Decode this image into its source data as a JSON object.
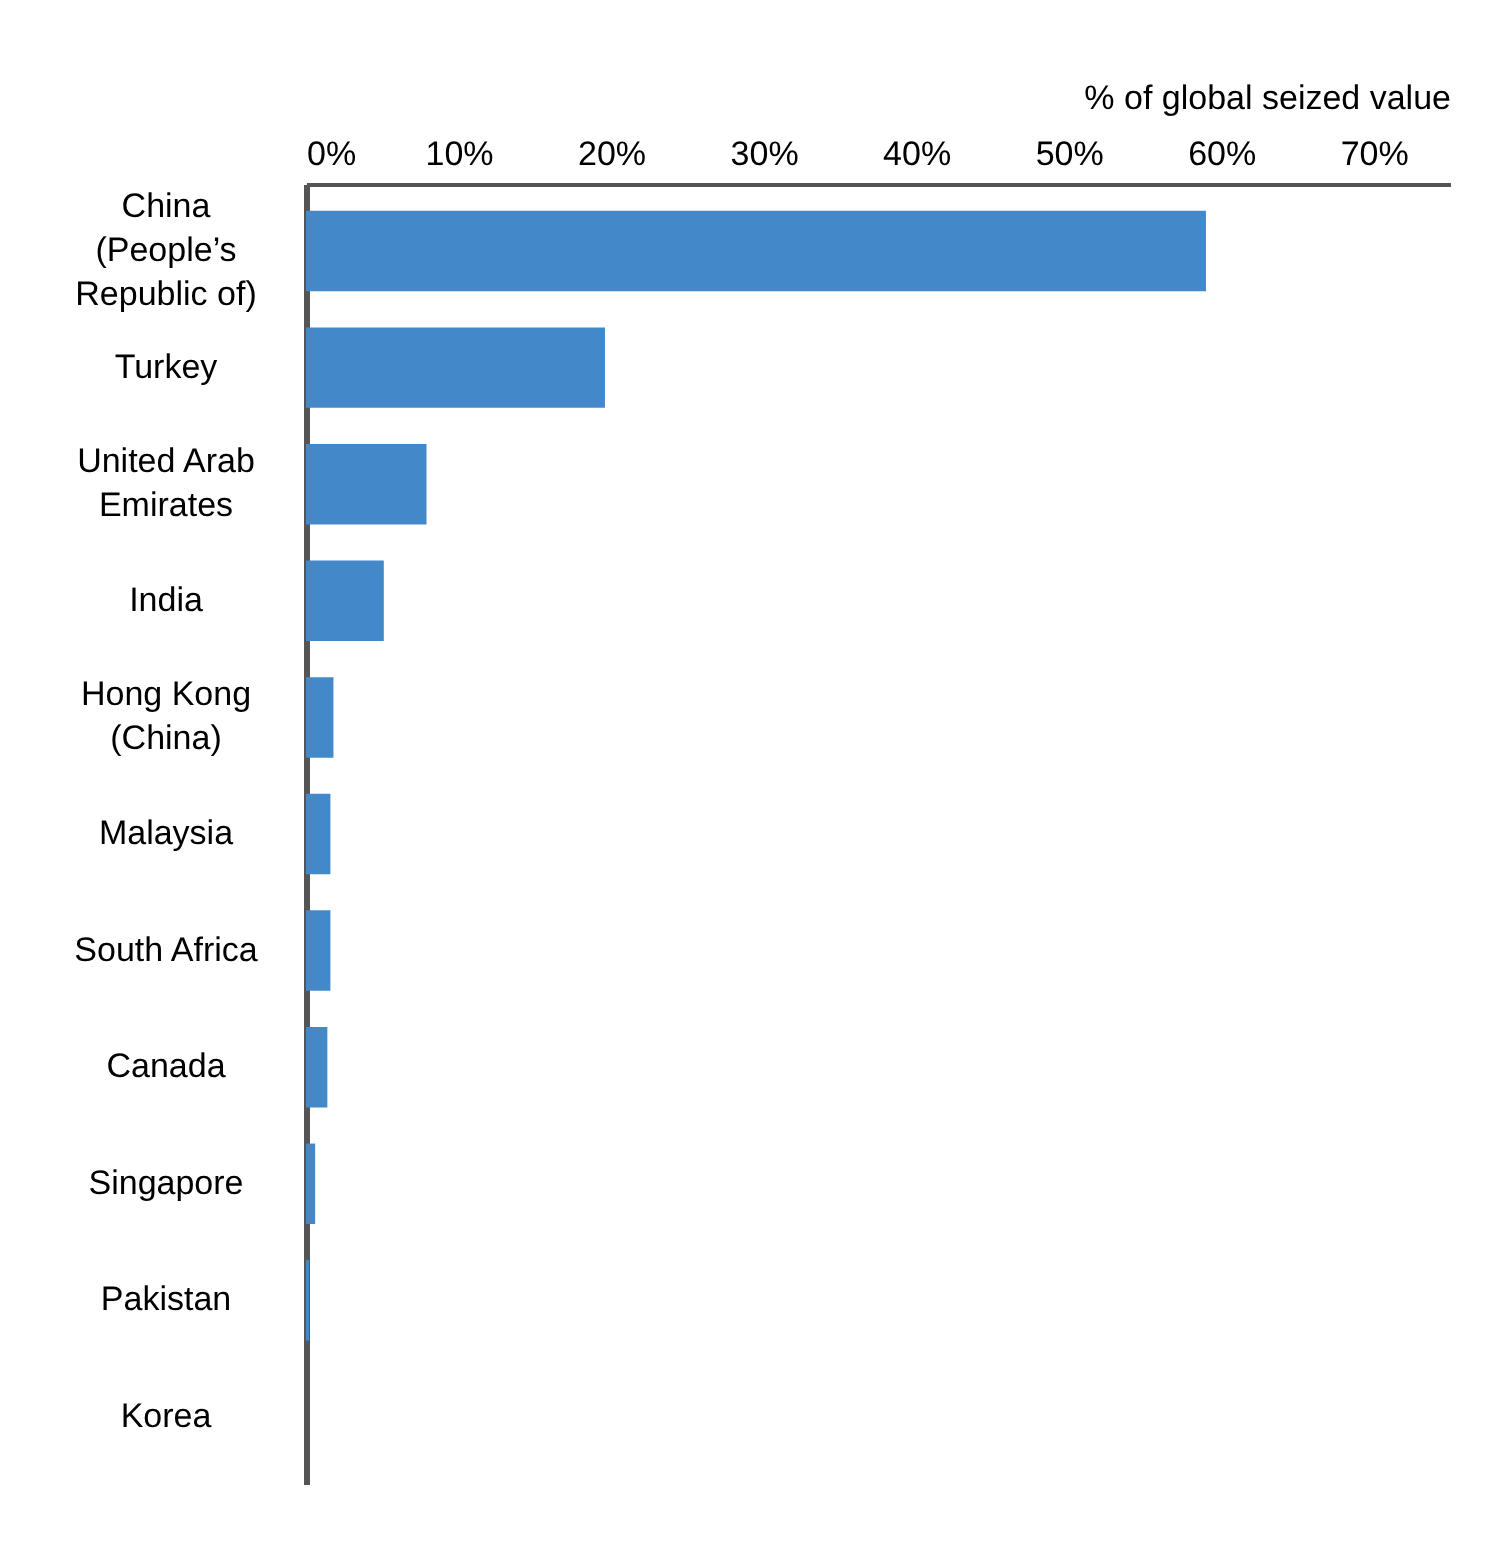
{
  "chart_data": {
    "type": "bar",
    "orientation": "horizontal",
    "xlabel": "% of global seized value",
    "categories": [
      "China (People’s Republic of)",
      "Turkey",
      "United Arab Emirates",
      "India",
      "Hong Kong (China)",
      "Malaysia",
      "South Africa",
      "Canada",
      "Singapore",
      "Pakistan",
      "Korea"
    ],
    "values": [
      59.0,
      19.6,
      7.9,
      5.1,
      1.8,
      1.6,
      1.6,
      1.4,
      0.6,
      0.2,
      0
    ],
    "color": "#4389c9",
    "xlim": [
      0,
      75
    ],
    "xticks": [
      {
        "value": 0,
        "label": "0%"
      },
      {
        "value": 10,
        "label": "10%"
      },
      {
        "value": 20,
        "label": "20%"
      },
      {
        "value": 30,
        "label": "30%"
      },
      {
        "value": 40,
        "label": "40%"
      },
      {
        "value": 50,
        "label": "50%"
      },
      {
        "value": 60,
        "label": "60%"
      },
      {
        "value": 70,
        "label": "70%"
      }
    ],
    "grid": false
  }
}
